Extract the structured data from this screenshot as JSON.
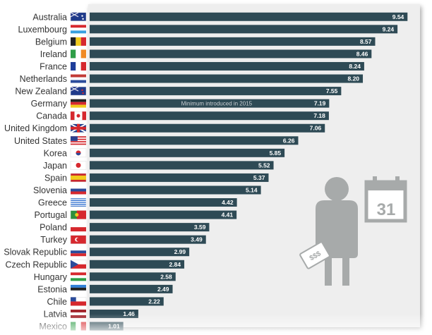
{
  "chart_data": {
    "type": "bar",
    "orientation": "horizontal",
    "categories": [
      "Australia",
      "Luxembourg",
      "Belgium",
      "Ireland",
      "France",
      "Netherlands",
      "New Zealand",
      "Germany",
      "Canada",
      "United Kingdom",
      "United States",
      "Korea",
      "Japan",
      "Spain",
      "Slovenia",
      "Greece",
      "Portugal",
      "Poland",
      "Turkey",
      "Slovak Republic",
      "Czech Republic",
      "Hungary",
      "Estonia",
      "Chile",
      "Latvia",
      "Mexico"
    ],
    "values": [
      9.54,
      9.24,
      8.57,
      8.46,
      8.24,
      8.2,
      7.55,
      7.19,
      7.18,
      7.06,
      6.26,
      5.85,
      5.52,
      5.37,
      5.14,
      4.42,
      4.41,
      3.59,
      3.49,
      2.99,
      2.84,
      2.58,
      2.49,
      2.22,
      1.46,
      1.01
    ],
    "value_labels": [
      "9.54",
      "9.24",
      "8.57",
      "8.46",
      "8.24",
      "8.20",
      "7.55",
      "7.19",
      "7.18",
      "7.06",
      "6.26",
      "5.85",
      "5.52",
      "5.37",
      "5.14",
      "4.42",
      "4.41",
      "3.59",
      "3.49",
      "2.99",
      "2.84",
      "2.58",
      "2.49",
      "2.22",
      "1.46",
      "1.01"
    ],
    "annotations": [
      {
        "category": "Germany",
        "text": "Minimum introduced in 2015"
      }
    ],
    "xlim": [
      0,
      9.8
    ],
    "grid": false,
    "legend": "none",
    "colors": {
      "bar": "#2e4a55",
      "panel": "#eeeeee",
      "value_text": "#ffffff",
      "illustration": "#a7aaaa"
    }
  },
  "illustration": {
    "calendar_day": "31",
    "banknote_text": "$$$"
  }
}
